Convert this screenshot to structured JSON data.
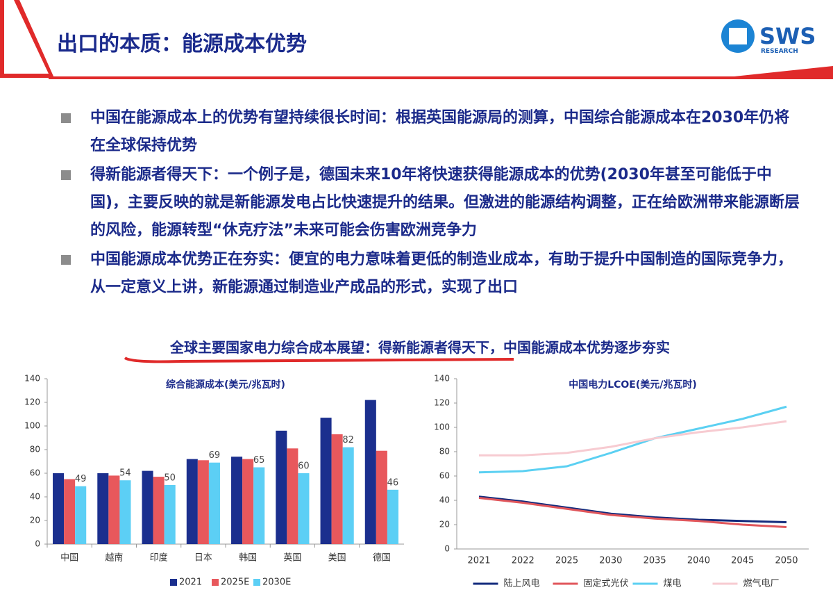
{
  "header": {
    "title": "出口的本质：能源成本优势",
    "logo": "SWS",
    "logo_sub": "RESEARCH"
  },
  "bullets": [
    "中国在能源成本上的优势有望持续很长时间：根据英国能源局的测算，中国综合能源成本在2030年仍将在全球保持优势",
    "得新能源者得天下：一个例子是，德国未来10年将快速获得能源成本的优势(2030年甚至可能低于中国)，主要反映的就是新能源发电占比快速提升的结果。但激进的能源结构调整，正在给欧洲带来能源断层的风险，能源转型“休克疗法”未来可能会伤害欧洲竞争力",
    "中国能源成本优势正在夯实：便宜的电力意味着更低的制造业成本，有助于提升中国制造的国际竞争力，从一定意义上讲，新能源通过制造业产成品的形式，实现了出口"
  ],
  "caption": "全球主要国家电力综合成本展望：得新能源者得天下，中国能源成本优势逐步夯实",
  "chart_data": [
    {
      "type": "bar",
      "title": "综合能源成本(美元/兆瓦时)",
      "categories": [
        "中国",
        "越南",
        "印度",
        "日本",
        "韩国",
        "英国",
        "美国",
        "德国"
      ],
      "series": [
        {
          "name": "2021",
          "color": "#1b2f8e",
          "values": [
            60,
            60,
            62,
            72,
            74,
            96,
            107,
            122
          ]
        },
        {
          "name": "2025E",
          "color": "#e8585c",
          "values": [
            55,
            58,
            57,
            71,
            72,
            81,
            93,
            79
          ]
        },
        {
          "name": "2030E",
          "color": "#5ccff5",
          "values": [
            49,
            54,
            50,
            69,
            65,
            60,
            82,
            46
          ],
          "data_labels": true
        }
      ],
      "ylim": [
        0,
        140
      ],
      "yticks": [
        0,
        20,
        40,
        60,
        80,
        100,
        120,
        140
      ],
      "grid": false,
      "legend": "bottom"
    },
    {
      "type": "line",
      "title": "中国电力LCOE(美元/兆瓦时)",
      "categories": [
        "2021",
        "2022",
        "2025",
        "2030",
        "2035",
        "2040",
        "2045",
        "2050"
      ],
      "series": [
        {
          "name": "陆上风电",
          "color": "#122a7c",
          "values": [
            43,
            39,
            34,
            29,
            26,
            24,
            23,
            22
          ]
        },
        {
          "name": "固定式光伏",
          "color": "#e0565b",
          "values": [
            42,
            38,
            33,
            28,
            25,
            23,
            20,
            18
          ]
        },
        {
          "name": "煤电",
          "color": "#5bd0f2",
          "values": [
            63,
            64,
            68,
            79,
            91,
            99,
            107,
            117
          ]
        },
        {
          "name": "燃气电厂",
          "color": "#f7cbd1",
          "values": [
            77,
            77,
            79,
            84,
            91,
            96,
            100,
            105
          ]
        }
      ],
      "ylim": [
        0,
        140
      ],
      "yticks": [
        0,
        20,
        40,
        60,
        80,
        100,
        120,
        140
      ],
      "grid": false,
      "legend": "bottom"
    }
  ]
}
